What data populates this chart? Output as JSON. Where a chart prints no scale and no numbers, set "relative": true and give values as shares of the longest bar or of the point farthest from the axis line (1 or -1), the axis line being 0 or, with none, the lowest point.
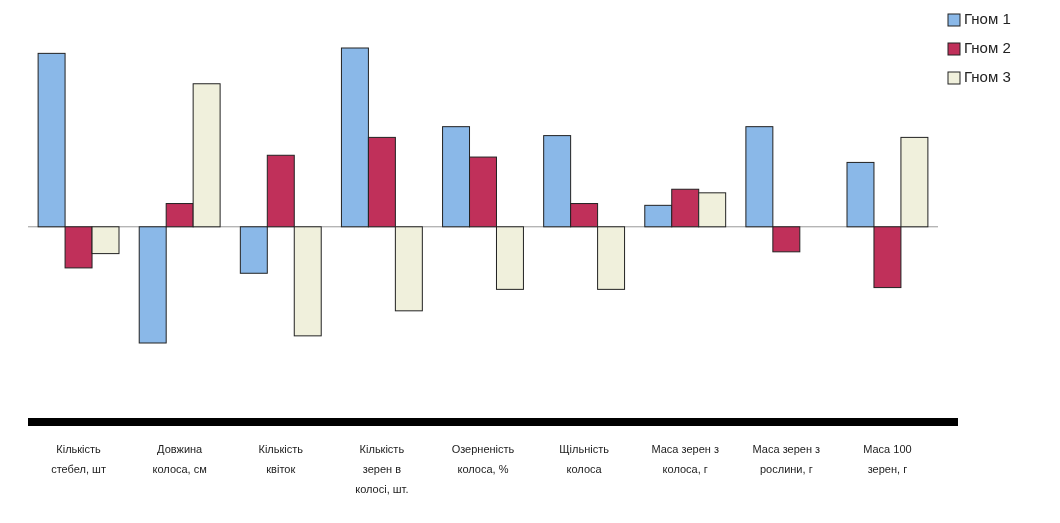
{
  "chart_data": {
    "type": "bar",
    "relative": true,
    "legend": "top right",
    "categories": [
      "Кількість стебел, шт",
      "Довжина колоса, см",
      "Кількість квіток",
      "Кількість зерен в колосі, шт.",
      "Озерненість колоса, %",
      "Щільність колоса",
      "Маса зерен з колоса, г",
      "Маса зерен з рослини, г",
      "Маса 100 зерен, г"
    ],
    "series": [
      {
        "name": "Гном 1",
        "color": "#8ab8e8",
        "values": [
          0.97,
          -0.65,
          -0.26,
          1,
          0.56,
          0.51,
          0.12,
          0.56,
          0.36
        ]
      },
      {
        "name": "Гном 2",
        "color": "#c0305a",
        "values": [
          -0.23,
          0.13,
          0.4,
          0.5,
          0.39,
          0.13,
          0.21,
          -0.14,
          -0.34
        ]
      },
      {
        "name": "Гном 3",
        "color": "#f0f0dc",
        "values": [
          -0.15,
          0.8,
          -0.61,
          -0.47,
          -0.35,
          -0.35,
          0.19,
          0,
          0.5
        ]
      }
    ]
  }
}
